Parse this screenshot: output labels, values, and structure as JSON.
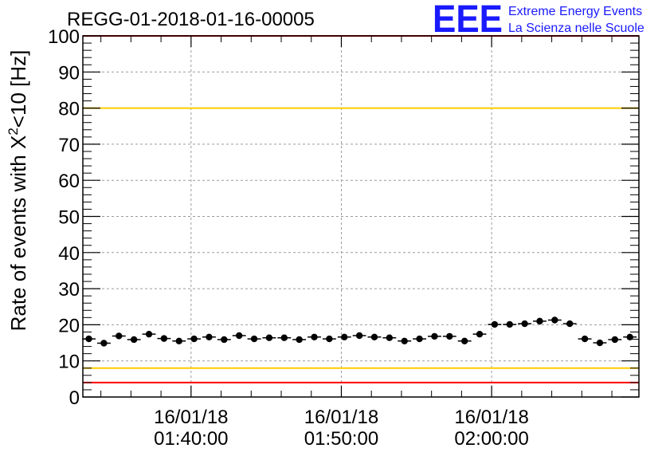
{
  "logo": {
    "mark": "EEE",
    "line1": "Extreme Energy Events",
    "line2": "La Scienza nelle Scuole",
    "color": "#1a1aff"
  },
  "chart_data": {
    "type": "scatter",
    "title": "REGG-01-2018-01-16-00005",
    "xlabel": "",
    "ylabel_parts": {
      "pre": "Rate of events with ",
      "sym": "X",
      "sup": "2",
      "post": "<10 [Hz]"
    },
    "x_units": "minutes after 16/01/18 01:40:00 (axis prints dates)",
    "xlim": [
      -7.2,
      29.8
    ],
    "ylim": [
      0,
      100
    ],
    "grid": true,
    "x_ticks": [
      {
        "x": 0,
        "label_date": "16/01/18",
        "label_time": "01:40:00"
      },
      {
        "x": 10,
        "label_date": "16/01/18",
        "label_time": "01:50:00"
      },
      {
        "x": 20,
        "label_date": "16/01/18",
        "label_time": "02:00:00"
      }
    ],
    "y_ticks": [
      "0",
      "10",
      "20",
      "30",
      "40",
      "50",
      "60",
      "70",
      "80",
      "90",
      "100"
    ],
    "reference_lines": [
      {
        "y": 100,
        "color": "#ff0000"
      },
      {
        "y": 80,
        "color": "#ffcc00"
      },
      {
        "y": 8,
        "color": "#ffcc00"
      },
      {
        "y": 4,
        "color": "#ff0000"
      }
    ],
    "series": [
      {
        "marker_color": "#000000",
        "points": [
          [
            -6.8,
            16.1
          ],
          [
            -5.8,
            14.9
          ],
          [
            -4.8,
            16.9
          ],
          [
            -3.8,
            15.9
          ],
          [
            -2.8,
            17.4
          ],
          [
            -1.8,
            16.2
          ],
          [
            -0.8,
            15.5
          ],
          [
            0.2,
            16.1
          ],
          [
            1.2,
            16.6
          ],
          [
            2.2,
            15.9
          ],
          [
            3.2,
            17.0
          ],
          [
            4.2,
            16.1
          ],
          [
            5.2,
            16.4
          ],
          [
            6.2,
            16.4
          ],
          [
            7.2,
            15.9
          ],
          [
            8.2,
            16.6
          ],
          [
            9.2,
            16.1
          ],
          [
            10.2,
            16.6
          ],
          [
            11.2,
            17.0
          ],
          [
            12.2,
            16.6
          ],
          [
            13.2,
            16.4
          ],
          [
            14.2,
            15.5
          ],
          [
            15.2,
            16.1
          ],
          [
            16.2,
            16.8
          ],
          [
            17.2,
            16.8
          ],
          [
            18.2,
            15.5
          ],
          [
            19.2,
            17.4
          ],
          [
            20.2,
            20.1
          ],
          [
            21.2,
            20.1
          ],
          [
            22.2,
            20.3
          ],
          [
            23.2,
            21.0
          ],
          [
            24.2,
            21.3
          ],
          [
            25.2,
            20.3
          ],
          [
            26.2,
            16.1
          ],
          [
            27.2,
            15.0
          ],
          [
            28.2,
            15.9
          ],
          [
            29.2,
            16.6
          ]
        ]
      }
    ]
  }
}
